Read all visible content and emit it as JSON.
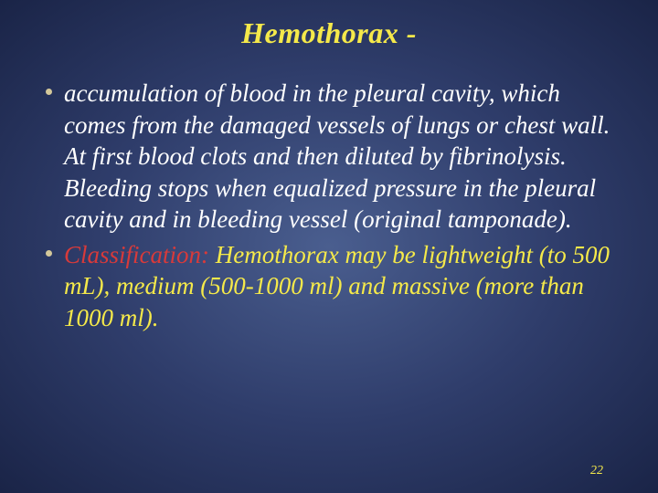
{
  "slide": {
    "title": "Hemothorax -",
    "title_color": "#f5e94a",
    "title_fontsize": 32,
    "background_center": "#4a5e8f",
    "background_mid": "#2f3d6b",
    "background_edge": "#1a2447",
    "bullets": [
      {
        "dot_color": "#d4c89a",
        "text": "accumulation of blood in the pleural cavity, which comes from the damaged vessels of lungs or chest wall. At first blood clots and then diluted by fibrinolysis. Bleeding stops when equalized pressure in the pleural cavity and in bleeding vessel (original tamponade).",
        "text_color": "#ffffff",
        "fontsize": 27
      },
      {
        "dot_color": "#d4c89a",
        "label": "Classification:",
        "label_color": "#d83a3a",
        "text": "  Hemothorax may be lightweight (to 500 mL), medium (500-1000 ml) and massive (more than 1000 ml).",
        "text_color": "#f5e94a",
        "fontsize": 27
      }
    ],
    "page_number": "22",
    "page_number_color": "#f5e94a",
    "page_number_fontsize": 14
  }
}
